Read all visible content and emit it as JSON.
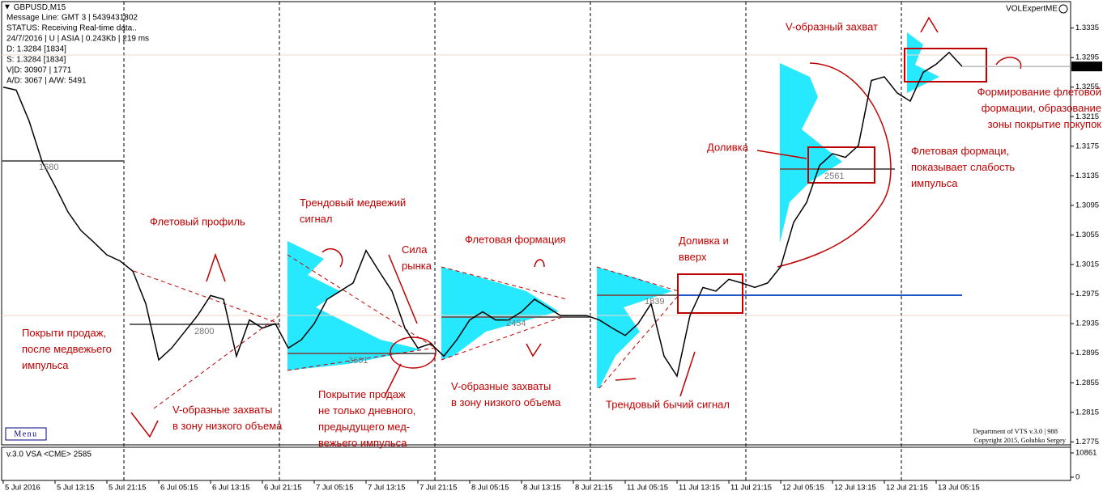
{
  "header": {
    "symbol": "GBPUSD,M15",
    "info_lines": [
      "Message Line: GMT 3 | 5439431802",
      "STATUS:  Receiving Real-time data..",
      "24/7/2016 | U | ASIA | 0.243Kb | 219 ms",
      "D: 1.3284  [1834]",
      "S: 1.3284  [1834]",
      "V|D: 30907 | 1771",
      "A/D: 3067 | A/W: 5491"
    ],
    "indicator": "VOLExpertME",
    "menu": "Menu",
    "footer": [
      "Department of VTS  v.3.0 | 988",
      "Copyright 2015, Golubko Sergey"
    ]
  },
  "profile_labels": [
    "1680",
    "2800",
    "3601",
    "2454",
    "1839",
    "2561"
  ],
  "annotations": [
    "Флетовый профиль",
    "Трендовый медвежий\nсигнал",
    "Сила\nрынка",
    "Флетовая формация",
    "Доливка и\nвверх",
    "Доливка",
    "V-образный захват",
    "Формирование флетовой\nформации, образование\nзоны покрытие покупок",
    "Флетовая формаци,\nпоказывает слабость\nимпульса",
    "Покрыти продаж,\nпосле медвежьего\nимпульса",
    "V-образные захваты\nв зону низкого объема",
    "Покрытие продаж\nне только дневного,\nпредыдущего мед-\nвежьего импульса",
    "V-образные захваты\nв зону низкого объема",
    "Трендовый бычий сигнал"
  ],
  "volume_panel": {
    "label": "v.3.0 VSA <CME> 2585",
    "ylim": [
      0,
      10861
    ],
    "yticks": [
      0,
      10861
    ]
  },
  "chart_data": {
    "type": "line",
    "x": [
      "5 Jul 2016",
      null,
      null,
      null,
      "5 Jul 13:15",
      null,
      null,
      null,
      "5 Jul 21:15",
      null,
      null,
      null,
      "6 Jul 05:15",
      null,
      null,
      null,
      "6 Jul 13:15",
      null,
      null,
      null,
      "6 Jul 21:15",
      null,
      null,
      null,
      "7 Jul 05:15",
      null,
      null,
      null,
      "7 Jul 13:15",
      null,
      null,
      null,
      "7 Jul 21:15",
      null,
      null,
      null,
      "8 Jul 05:15",
      null,
      null,
      null,
      "8 Jul 13:15",
      null,
      null,
      null,
      "8 Jul 21:15",
      null,
      null,
      null,
      "11 Jul 05:15",
      null,
      null,
      null,
      "11 Jul 13:15",
      null,
      null,
      null,
      "11 Jul 21:15",
      null,
      null,
      null,
      "12 Jul 05:15",
      null,
      null,
      null,
      "12 Jul 13:15",
      null,
      null,
      null,
      "12 Jul 21:15",
      null,
      null,
      null,
      "13 Jul 05:15",
      null,
      null
    ],
    "series": [
      {
        "name": "GBPUSD",
        "color": "#000000",
        "values": [
          1.3255,
          1.3251,
          1.3209,
          1.3154,
          1.3121,
          1.3086,
          1.3061,
          1.3045,
          1.3028,
          1.302,
          1.3006,
          1.2962,
          1.2886,
          1.2902,
          1.2924,
          1.2946,
          1.2973,
          1.2968,
          1.2891,
          1.294,
          1.2929,
          1.2935,
          1.2902,
          1.2913,
          1.2935,
          1.2968,
          1.2979,
          1.299,
          1.3034,
          1.3006,
          1.2979,
          1.2929,
          1.2902,
          1.2908,
          1.2891,
          1.2913,
          1.294,
          1.2951,
          1.294,
          1.294,
          1.2951,
          1.2968,
          1.2957,
          1.2946,
          1.2946,
          1.2946,
          1.294,
          1.2929,
          1.2919,
          1.2935,
          1.2962,
          1.2891,
          1.2864,
          1.2946,
          1.2984,
          1.2979,
          1.2995,
          1.299,
          1.2984,
          1.299,
          1.3012,
          1.3072,
          1.3099,
          1.3149,
          1.3165,
          1.316,
          1.3176,
          1.3264,
          1.3269,
          1.3247,
          1.3236,
          1.3275,
          1.3286,
          1.3302,
          1.3283
        ]
      }
    ],
    "ylim": [
      1.2771,
      1.3351
    ],
    "yticks": [
      1.2775,
      1.2815,
      1.2855,
      1.2895,
      1.2935,
      1.2975,
      1.3015,
      1.3055,
      1.3095,
      1.3135,
      1.3175,
      1.3215,
      1.3255,
      1.3295,
      1.3335
    ]
  }
}
